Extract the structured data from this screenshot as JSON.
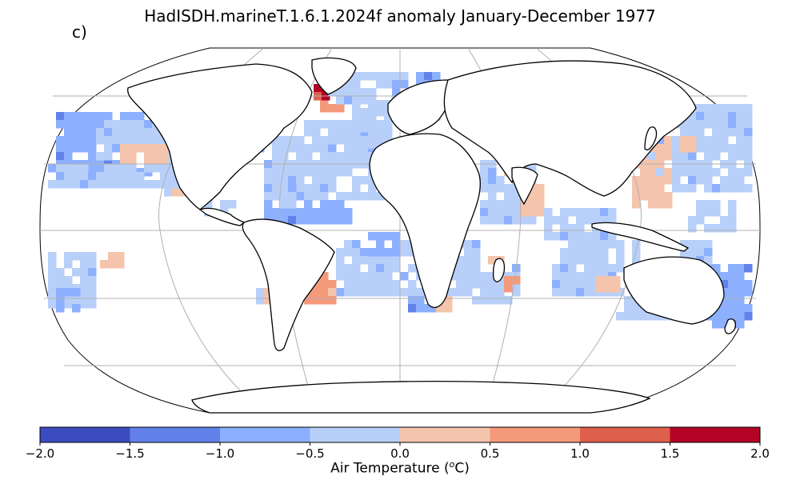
{
  "title": "HadISDH.marineT.1.6.1.2024f anomaly January-December 1977",
  "panel_label": "c)",
  "colorbar": {
    "label_text": "Air Temperature (",
    "label_sup": "o",
    "label_end": "C)",
    "ticks": [
      "−2.0",
      "−1.5",
      "−1.0",
      "−0.5",
      "0.0",
      "0.5",
      "1.0",
      "1.5",
      "2.0"
    ],
    "tick_values": [
      -2.0,
      -1.5,
      -1.0,
      -0.5,
      0.0,
      0.5,
      1.0,
      1.5,
      2.0
    ],
    "colors": [
      "#3b4cc0",
      "#6282ea",
      "#8db0fe",
      "#b8d0f9",
      "#f5c4ac",
      "#f49a7b",
      "#de604d",
      "#b40426"
    ]
  },
  "map": {
    "projection": "Robinson",
    "land_color": "#ffffff",
    "coast_color": "#000000",
    "grid_color": "#b0b0b0",
    "anomaly_patches": [
      {
        "region": "North Pacific",
        "bin": 3
      },
      {
        "region": "North Pacific west",
        "bin": 2
      },
      {
        "region": "NE Pacific",
        "bin": 4
      },
      {
        "region": "Eastern tropical Pacific",
        "bin": 4
      },
      {
        "region": "North Atlantic",
        "bin": 3
      },
      {
        "region": "NW Atlantic",
        "bin": 2
      },
      {
        "region": "Greenland coast",
        "bin": 7
      },
      {
        "region": "Iceland",
        "bin": 5
      },
      {
        "region": "Indian Ocean",
        "bin": 3
      },
      {
        "region": "Arabian Sea",
        "bin": 4
      },
      {
        "region": "South China Sea",
        "bin": 4
      },
      {
        "region": "SW Atlantic",
        "bin": 5
      },
      {
        "region": "Mozambique Channel",
        "bin": 5
      },
      {
        "region": "Tasman Sea",
        "bin": 2
      },
      {
        "region": "South Pacific",
        "bin": 3
      }
    ]
  }
}
